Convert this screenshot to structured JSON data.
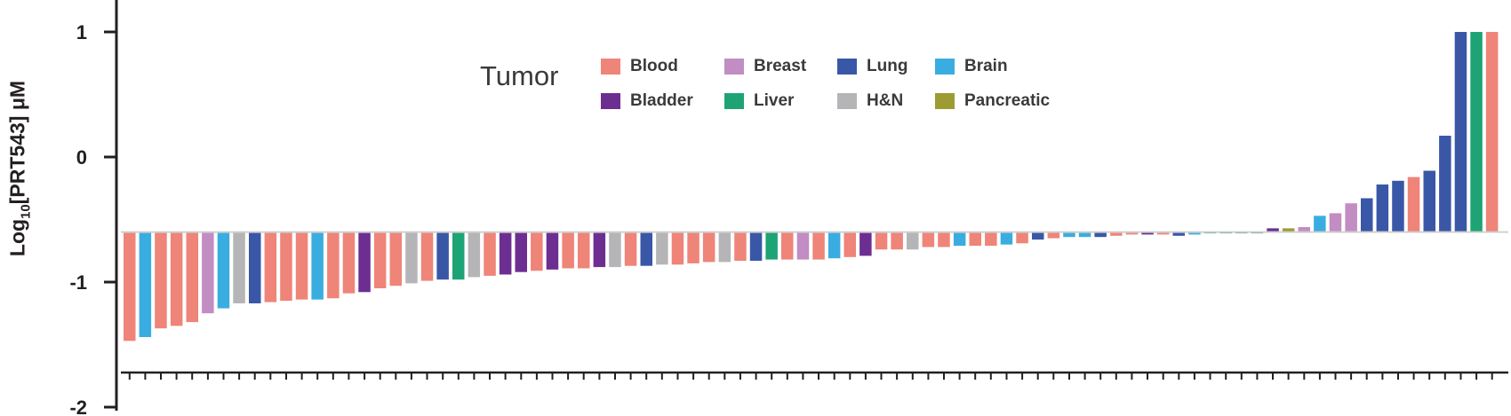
{
  "chart_data": {
    "type": "bar",
    "title": "",
    "xlabel": "",
    "ylabel": "Log10[PRT543] μM",
    "ylabel_parts": {
      "base": "Log",
      "sub": "10",
      "rest": "[PRT543] μM"
    },
    "ylim": [
      -2,
      1.2
    ],
    "yticks": [
      1,
      0,
      -1,
      -2
    ],
    "bar_baseline": -0.6,
    "legend_title": "Tumor",
    "categories_legend": [
      {
        "name": "Blood",
        "color": "#ef8478"
      },
      {
        "name": "Breast",
        "color": "#c28dc2"
      },
      {
        "name": "Lung",
        "color": "#3a57a7"
      },
      {
        "name": "Brain",
        "color": "#3aade0"
      },
      {
        "name": "Bladder",
        "color": "#6c2f91"
      },
      {
        "name": "Liver",
        "color": "#1ea474"
      },
      {
        "name": "H&N",
        "color": "#b5b5b7"
      },
      {
        "name": "Pancreatic",
        "color": "#9c9c33"
      }
    ],
    "bars": [
      {
        "v": -1.47,
        "c": "Blood"
      },
      {
        "v": -1.44,
        "c": "Brain"
      },
      {
        "v": -1.37,
        "c": "Blood"
      },
      {
        "v": -1.35,
        "c": "Blood"
      },
      {
        "v": -1.32,
        "c": "Blood"
      },
      {
        "v": -1.25,
        "c": "Breast"
      },
      {
        "v": -1.21,
        "c": "Brain"
      },
      {
        "v": -1.17,
        "c": "H&N"
      },
      {
        "v": -1.17,
        "c": "Lung"
      },
      {
        "v": -1.16,
        "c": "Blood"
      },
      {
        "v": -1.15,
        "c": "Blood"
      },
      {
        "v": -1.14,
        "c": "Blood"
      },
      {
        "v": -1.14,
        "c": "Brain"
      },
      {
        "v": -1.13,
        "c": "Blood"
      },
      {
        "v": -1.09,
        "c": "Blood"
      },
      {
        "v": -1.08,
        "c": "Bladder"
      },
      {
        "v": -1.05,
        "c": "Blood"
      },
      {
        "v": -1.03,
        "c": "Blood"
      },
      {
        "v": -1.01,
        "c": "H&N"
      },
      {
        "v": -0.99,
        "c": "Blood"
      },
      {
        "v": -0.98,
        "c": "Lung"
      },
      {
        "v": -0.98,
        "c": "Liver"
      },
      {
        "v": -0.96,
        "c": "H&N"
      },
      {
        "v": -0.95,
        "c": "Blood"
      },
      {
        "v": -0.94,
        "c": "Bladder"
      },
      {
        "v": -0.92,
        "c": "Bladder"
      },
      {
        "v": -0.91,
        "c": "Blood"
      },
      {
        "v": -0.9,
        "c": "Bladder"
      },
      {
        "v": -0.89,
        "c": "Blood"
      },
      {
        "v": -0.89,
        "c": "Blood"
      },
      {
        "v": -0.88,
        "c": "Bladder"
      },
      {
        "v": -0.88,
        "c": "H&N"
      },
      {
        "v": -0.87,
        "c": "Blood"
      },
      {
        "v": -0.87,
        "c": "Lung"
      },
      {
        "v": -0.86,
        "c": "H&N"
      },
      {
        "v": -0.86,
        "c": "Blood"
      },
      {
        "v": -0.85,
        "c": "Blood"
      },
      {
        "v": -0.84,
        "c": "Blood"
      },
      {
        "v": -0.84,
        "c": "H&N"
      },
      {
        "v": -0.83,
        "c": "Blood"
      },
      {
        "v": -0.83,
        "c": "Lung"
      },
      {
        "v": -0.82,
        "c": "Liver"
      },
      {
        "v": -0.82,
        "c": "Blood"
      },
      {
        "v": -0.82,
        "c": "Breast"
      },
      {
        "v": -0.82,
        "c": "Blood"
      },
      {
        "v": -0.81,
        "c": "Brain"
      },
      {
        "v": -0.8,
        "c": "Blood"
      },
      {
        "v": -0.79,
        "c": "Bladder"
      },
      {
        "v": -0.74,
        "c": "Blood"
      },
      {
        "v": -0.74,
        "c": "Blood"
      },
      {
        "v": -0.74,
        "c": "H&N"
      },
      {
        "v": -0.72,
        "c": "Blood"
      },
      {
        "v": -0.72,
        "c": "Blood"
      },
      {
        "v": -0.71,
        "c": "Brain"
      },
      {
        "v": -0.71,
        "c": "Blood"
      },
      {
        "v": -0.71,
        "c": "Blood"
      },
      {
        "v": -0.7,
        "c": "Brain"
      },
      {
        "v": -0.69,
        "c": "Blood"
      },
      {
        "v": -0.66,
        "c": "Lung"
      },
      {
        "v": -0.65,
        "c": "Blood"
      },
      {
        "v": -0.64,
        "c": "Brain"
      },
      {
        "v": -0.64,
        "c": "Brain"
      },
      {
        "v": -0.64,
        "c": "Lung"
      },
      {
        "v": -0.63,
        "c": "Blood"
      },
      {
        "v": -0.62,
        "c": "Blood"
      },
      {
        "v": -0.62,
        "c": "Bladder"
      },
      {
        "v": -0.62,
        "c": "Blood"
      },
      {
        "v": -0.63,
        "c": "Lung"
      },
      {
        "v": -0.62,
        "c": "Brain"
      },
      {
        "v": -0.61,
        "c": "Liver"
      },
      {
        "v": -0.61,
        "c": "Liver"
      },
      {
        "v": -0.61,
        "c": "Liver"
      },
      {
        "v": -0.6,
        "c": "Liver"
      },
      {
        "v": -0.57,
        "c": "Bladder"
      },
      {
        "v": -0.57,
        "c": "Pancreatic"
      },
      {
        "v": -0.56,
        "c": "Breast"
      },
      {
        "v": -0.47,
        "c": "Brain"
      },
      {
        "v": -0.45,
        "c": "Breast"
      },
      {
        "v": -0.37,
        "c": "Breast"
      },
      {
        "v": -0.33,
        "c": "Lung"
      },
      {
        "v": -0.22,
        "c": "Lung"
      },
      {
        "v": -0.19,
        "c": "Lung"
      },
      {
        "v": -0.16,
        "c": "Blood"
      },
      {
        "v": -0.11,
        "c": "Lung"
      },
      {
        "v": 0.17,
        "c": "Lung"
      },
      {
        "v": 1.0,
        "c": "Lung"
      },
      {
        "v": 1.0,
        "c": "Liver"
      },
      {
        "v": 1.0,
        "c": "Blood"
      }
    ]
  }
}
